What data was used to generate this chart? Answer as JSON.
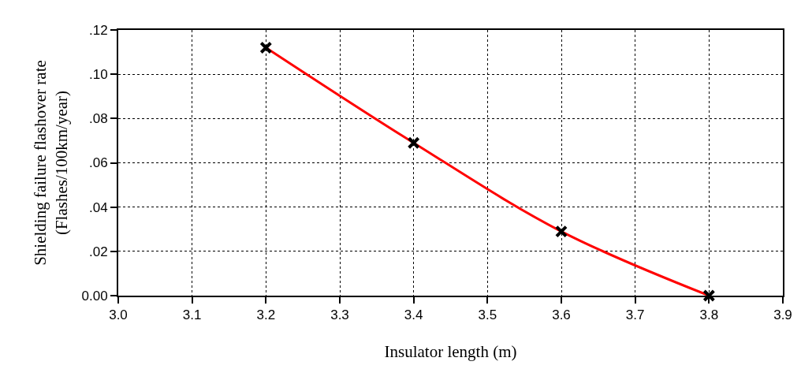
{
  "chart_data": {
    "type": "line",
    "xlabel": "Insulator length (m)",
    "ylabel": "Shielding failure flashover rate\n(Flashes/100km/year)",
    "x": [
      3.2,
      3.4,
      3.6,
      3.8
    ],
    "series": [
      {
        "color": "#ff0000",
        "marker": "none",
        "values": [
          0.112,
          0.069,
          0.029,
          0.0
        ]
      },
      {
        "type": "scatter",
        "color": "#000000",
        "marker": "cross",
        "values": [
          0.112,
          0.069,
          0.029,
          0.0
        ]
      }
    ],
    "xlim": [
      3.0,
      3.9
    ],
    "xticks": [
      {
        "value": 3,
        "label": "3.0"
      },
      3.1,
      3.2,
      3.3,
      3.4,
      3.5,
      3.6,
      3.7,
      3.8,
      3.9
    ],
    "ylim": [
      0,
      0.12
    ],
    "yticks": [
      {
        "value": 0,
        "label": "0.00"
      },
      {
        "value": 0.02,
        "label": ".02"
      },
      {
        "value": 0.04,
        "label": ".04"
      },
      {
        "value": 0.06,
        "label": ".06"
      },
      {
        "value": 0.08,
        "label": ".08"
      },
      {
        "value": 0.1,
        "label": ".10"
      },
      {
        "value": 0.12,
        "label": ".12"
      }
    ],
    "grid": true,
    "legend": false
  }
}
